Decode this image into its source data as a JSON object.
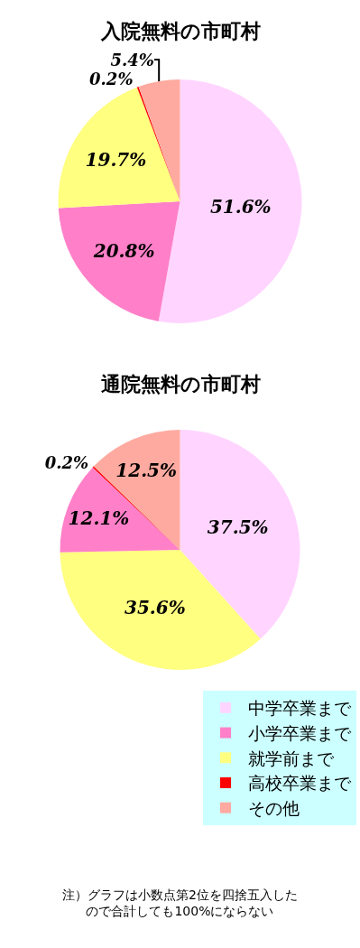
{
  "chart_data": [
    {
      "type": "pie",
      "title": "入院無料の市町村",
      "categories": [
        "中学卒業まで",
        "小学卒業まで",
        "就学前まで",
        "高校卒業まで",
        "その他"
      ],
      "values": [
        51.6,
        20.8,
        19.7,
        0.2,
        5.4
      ],
      "colors": [
        "#ffd5ff",
        "#ff80c8",
        "#ffff80",
        "#ff0000",
        "#ffaaa0"
      ],
      "value_labels": [
        "51.6%",
        "20.8%",
        "19.7%",
        "0.2%",
        "5.4%"
      ],
      "legend": "bottom right"
    },
    {
      "type": "pie",
      "title": "通院無料の市町村",
      "categories": [
        null,
        null,
        null,
        null,
        null
      ],
      "values": [
        37.5,
        35.6,
        12.1,
        0.2,
        12.5
      ],
      "colors": [
        "#ffd5ff",
        "#ffff80",
        "#ff80c8",
        "#ff0000",
        "#ffaaa0"
      ],
      "value_labels": [
        "37.5%",
        "35.6%",
        "12.1%",
        "0.2%",
        "12.5%"
      ],
      "annotations": [
        "注）グラフは小数点第2位を四捨五入したので合計しても100%にならない"
      ]
    }
  ]
}
